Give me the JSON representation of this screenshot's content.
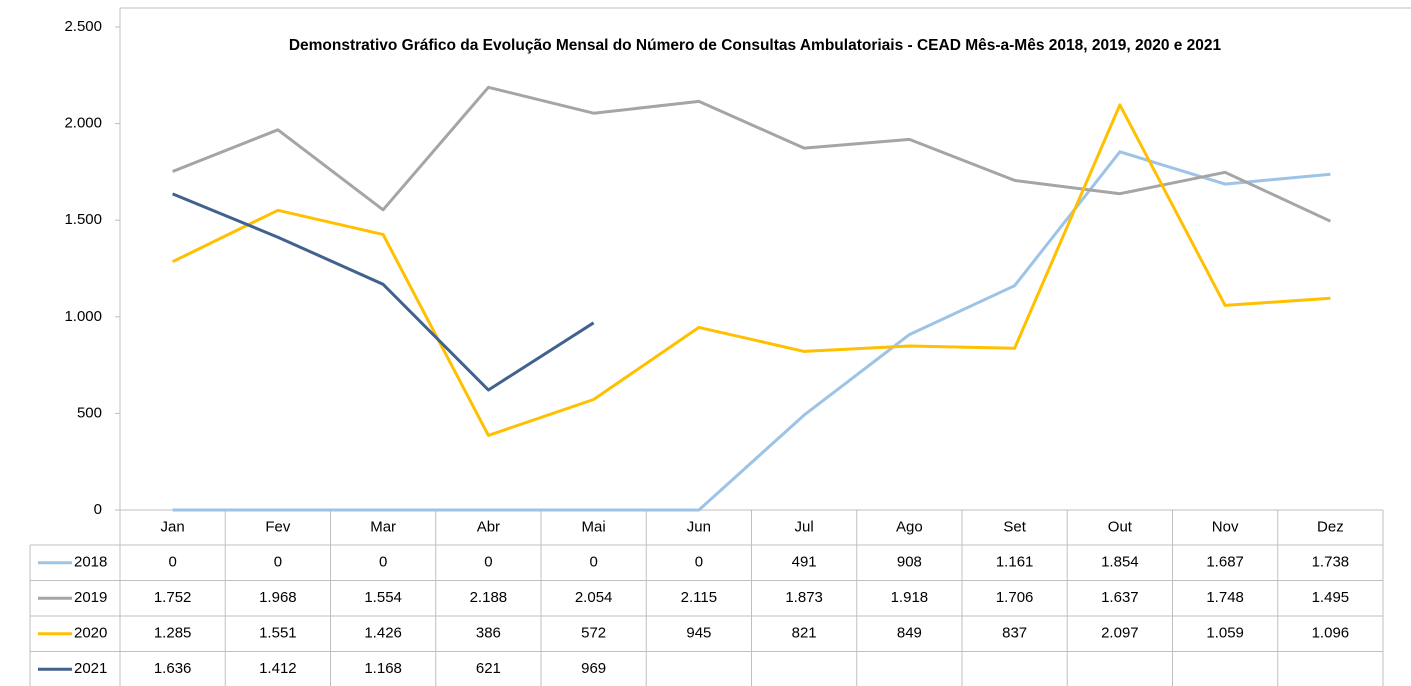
{
  "chart_data": {
    "type": "line",
    "title": "Demonstrativo Gráfico da Evolução Mensal do Número de Consultas Ambulatoriais - CEAD Mês-a-Mês 2018, 2019, 2020 e 2021",
    "categories": [
      "Jan",
      "Fev",
      "Mar",
      "Abr",
      "Mai",
      "Jun",
      "Jul",
      "Ago",
      "Set",
      "Out",
      "Nov",
      "Dez"
    ],
    "series": [
      {
        "name": "2018",
        "color": "#9dc3e6",
        "values": [
          0,
          0,
          0,
          0,
          0,
          0,
          491,
          908,
          1161,
          1854,
          1687,
          1738
        ],
        "value_labels": [
          "0",
          "0",
          "0",
          "0",
          "0",
          "0",
          "491",
          "908",
          "1.161",
          "1.854",
          "1.687",
          "1.738"
        ]
      },
      {
        "name": "2019",
        "color": "#a5a5a5",
        "values": [
          1752,
          1968,
          1554,
          2188,
          2054,
          2115,
          1873,
          1918,
          1706,
          1637,
          1748,
          1495
        ],
        "value_labels": [
          "1.752",
          "1.968",
          "1.554",
          "2.188",
          "2.054",
          "2.115",
          "1.873",
          "1.918",
          "1.706",
          "1.637",
          "1.748",
          "1.495"
        ]
      },
      {
        "name": "2020",
        "color": "#ffc000",
        "values": [
          1285,
          1551,
          1426,
          386,
          572,
          945,
          821,
          849,
          837,
          2097,
          1059,
          1096
        ],
        "value_labels": [
          "1.285",
          "1.551",
          "1.426",
          "386",
          "572",
          "945",
          "821",
          "849",
          "837",
          "2.097",
          "1.059",
          "1.096"
        ]
      },
      {
        "name": "2021",
        "color": "#41618f",
        "values": [
          1636,
          1412,
          1168,
          621,
          969,
          null,
          null,
          null,
          null,
          null,
          null,
          null
        ],
        "value_labels": [
          "1.636",
          "1.412",
          "1.168",
          "621",
          "969",
          null,
          null,
          null,
          null,
          null,
          null,
          null
        ]
      }
    ],
    "ylim": [
      0,
      2500
    ],
    "yticks": [
      0,
      500,
      {
        "value": 1000,
        "label": "1.000"
      },
      {
        "value": 1500,
        "label": "1.500"
      },
      {
        "value": 2000,
        "label": "2.000"
      },
      {
        "value": 2500,
        "label": "2.500"
      }
    ],
    "grid": false
  }
}
